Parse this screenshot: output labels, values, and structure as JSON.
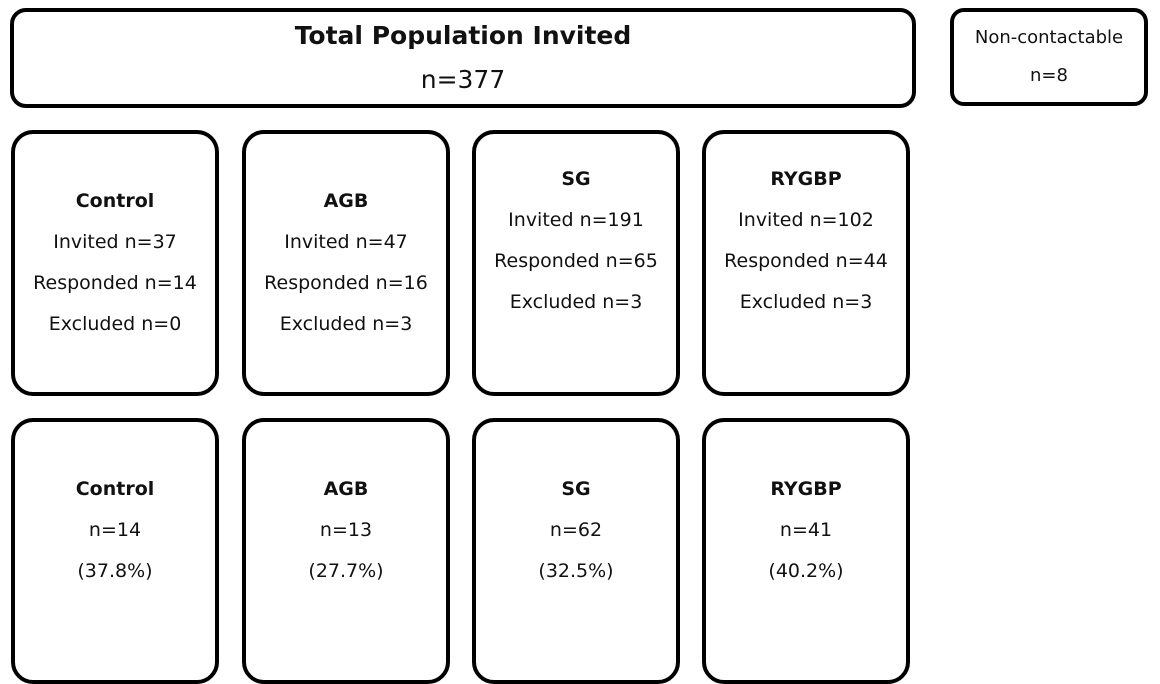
{
  "total": {
    "title": "Total Population Invited",
    "count": "n=377"
  },
  "noncontactable": {
    "label": "Non-contactable",
    "count": "n=8"
  },
  "groups": [
    {
      "name": "Control",
      "invited": "Invited n=37",
      "responded": "Responded n=14",
      "excluded": "Excluded n=0"
    },
    {
      "name": "AGB",
      "invited": "Invited n=47",
      "responded": "Responded n=16",
      "excluded": "Excluded n=3"
    },
    {
      "name": "SG",
      "invited": "Invited n=191",
      "responded": "Responded n=65",
      "excluded": "Excluded n=3"
    },
    {
      "name": "RYGBP",
      "invited": "Invited n=102",
      "responded": "Responded n=44",
      "excluded": "Excluded n=3"
    }
  ],
  "results": [
    {
      "name": "Control",
      "count": "n=14",
      "percent": "(37.8%)"
    },
    {
      "name": "AGB",
      "count": "n=13",
      "percent": "(27.7%)"
    },
    {
      "name": "SG",
      "count": "n=62",
      "percent": "(32.5%)"
    },
    {
      "name": "RYGBP",
      "count": "n=41",
      "percent": "(40.2%)"
    }
  ]
}
